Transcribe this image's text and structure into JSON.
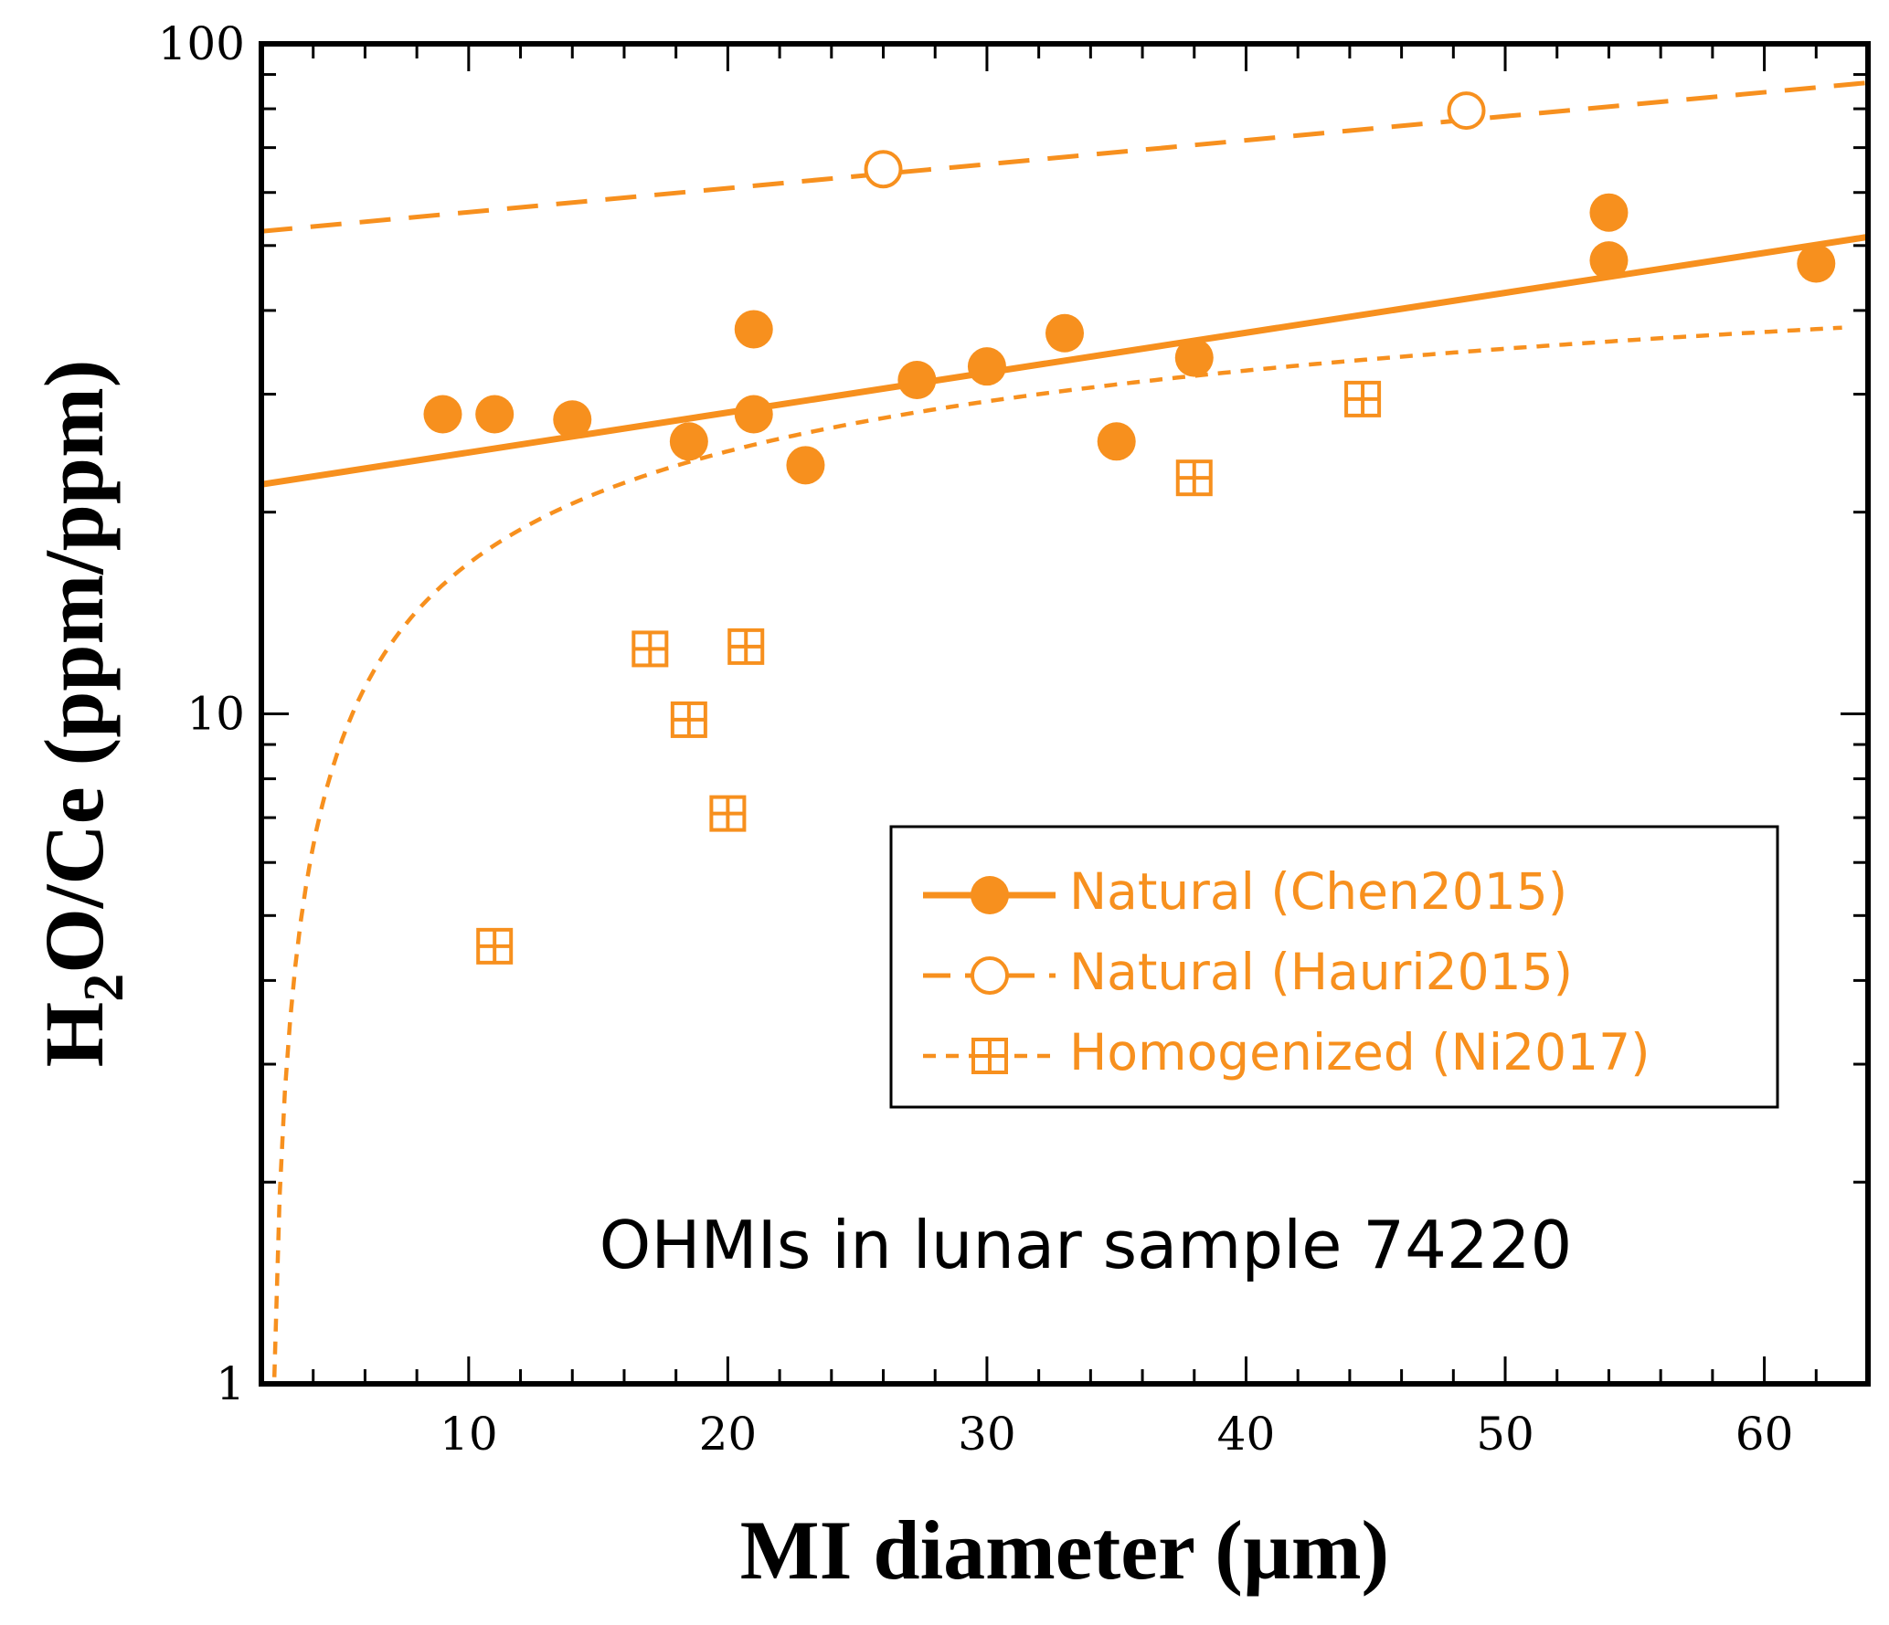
{
  "chart_data": {
    "type": "scatter",
    "title": "",
    "xlabel": "MI diameter (µm)",
    "ylabel_main": "H",
    "ylabel_sub": "2",
    "ylabel_rest": "O/Ce (ppm/ppm)",
    "xlim": [
      2,
      64
    ],
    "ylim": [
      1,
      100
    ],
    "yscale": "log",
    "x_ticks": [
      10,
      20,
      30,
      40,
      50,
      60
    ],
    "x_tick_labels": [
      "10",
      "20",
      "30",
      "40",
      "50",
      "60"
    ],
    "y_ticks": [
      1,
      10,
      100
    ],
    "y_tick_labels": [
      "1",
      "10",
      "100"
    ],
    "annotation": "OHMIs in lunar sample 74220",
    "color": "#F7901E",
    "series": [
      {
        "name": "Natural (Chen2015)",
        "marker": "filled-circle",
        "line": "solid",
        "x": [
          9,
          11,
          14,
          18.5,
          21,
          21,
          23,
          27.3,
          30,
          33,
          35,
          38,
          54,
          54,
          62
        ],
        "y": [
          28,
          28,
          27.5,
          25.5,
          37.5,
          28,
          23.5,
          31.5,
          33,
          37,
          25.5,
          34,
          47.5,
          56,
          47
        ],
        "fit": {
          "x": [
            2,
            64
          ],
          "y": [
            22,
            51.5
          ]
        }
      },
      {
        "name": "Natural (Hauri2015)",
        "marker": "open-circle",
        "line": "dashed",
        "x": [
          26,
          48.5
        ],
        "y": [
          65,
          79.5
        ],
        "fit": {
          "x": [
            2,
            64
          ],
          "y": [
            52.5,
            87.5
          ]
        }
      },
      {
        "name": "Homogenized (Ni2017)",
        "marker": "boxed-plus",
        "line": "short-dashed",
        "x": [
          11,
          17,
          18.5,
          20,
          20.7,
          38,
          44.5
        ],
        "y": [
          4.5,
          12.5,
          9.8,
          7.1,
          12.6,
          22.5,
          29.5
        ],
        "fit_curve": {
          "form": "y = 11.37*ln(x/2.287)",
          "x_start": 2.3,
          "x_end": 63
        }
      }
    ],
    "legend_position": "center-right"
  }
}
